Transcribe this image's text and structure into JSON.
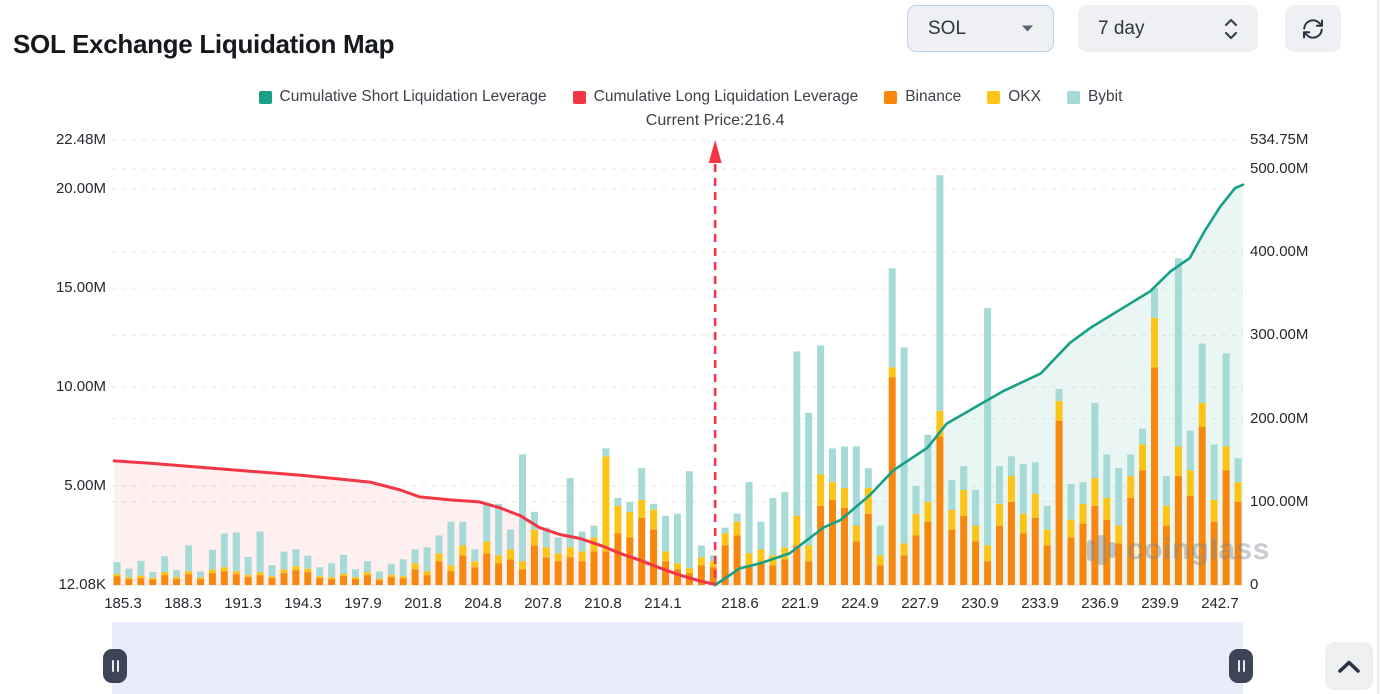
{
  "header": {
    "title": "SOL Exchange Liquidation Map",
    "symbol_select": {
      "value": "SOL",
      "icon": "caret-down-icon"
    },
    "period_select": {
      "value": "7 day",
      "icon": "stepper-up-down-icon"
    },
    "refresh_button": {
      "icon": "refresh-icon"
    }
  },
  "watermark": {
    "text": "coinglass",
    "icon": "coinglass-logo-icon"
  },
  "scrollbar": {
    "left_handle_icon": "pause-icon",
    "right_handle_icon": "pause-icon",
    "track_color": "#e9edfb"
  },
  "collapse_button": {
    "icon": "chevron-up-icon"
  },
  "chart_data": {
    "type": "bar",
    "subtype": "stacked bars + two cumulative lines",
    "title": "SOL Exchange Liquidation Map",
    "annotation": "Current Price:216.4",
    "current_price": 216.4,
    "current_price_fraction": 0.5333,
    "legend": [
      {
        "label": "Cumulative Short Liquidation Leverage",
        "color": "#18a087",
        "type": "line"
      },
      {
        "label": "Cumulative Long Liquidation Leverage",
        "color": "#f23645",
        "type": "line"
      },
      {
        "label": "Binance",
        "color": "#f8870e",
        "type": "bar"
      },
      {
        "label": "OKX",
        "color": "#fcc417",
        "type": "bar"
      },
      {
        "label": "Bybit",
        "color": "#a5dad6",
        "type": "bar"
      }
    ],
    "colors": {
      "binance": "#f8870e",
      "okx": "#fcc417",
      "bybit": "#a5dad6",
      "long": "#f23645",
      "short": "#18a087",
      "long_fill": "rgba(242,54,69,0.08)",
      "short_fill": "rgba(24,160,135,0.09)"
    },
    "left_axis": {
      "ticks": [
        "22.48M",
        "20.00M",
        "15.00M",
        "10.00M",
        "5.00M",
        "12.08K"
      ],
      "values_m": [
        22.48,
        20,
        15,
        10,
        5,
        0.01208
      ],
      "max_m": 22.48
    },
    "right_axis": {
      "ticks": [
        "534.75M",
        "500.00M",
        "400.00M",
        "300.00M",
        "200.00M",
        "100.00M",
        "0"
      ],
      "values_m": [
        534.75,
        500,
        400,
        300,
        200,
        100,
        0
      ],
      "max_m": 534.75
    },
    "x_axis": {
      "ticks": [
        "185.3",
        "188.3",
        "191.3",
        "194.3",
        "197.9",
        "201.8",
        "204.8",
        "207.8",
        "210.8",
        "214.1",
        "218.6",
        "221.9",
        "224.9",
        "227.9",
        "230.9",
        "233.9",
        "236.9",
        "239.9",
        "242.7"
      ]
    },
    "x_unit": "fraction of plot width",
    "long_line": [
      [
        0.002,
        6.27
      ],
      [
        0.034,
        6.15
      ],
      [
        0.078,
        5.95
      ],
      [
        0.122,
        5.75
      ],
      [
        0.166,
        5.55
      ],
      [
        0.202,
        5.35
      ],
      [
        0.228,
        5.2
      ],
      [
        0.255,
        4.8
      ],
      [
        0.272,
        4.45
      ],
      [
        0.299,
        4.3
      ],
      [
        0.325,
        4.2
      ],
      [
        0.343,
        3.9
      ],
      [
        0.361,
        3.5
      ],
      [
        0.378,
        2.9
      ],
      [
        0.396,
        2.55
      ],
      [
        0.414,
        2.35
      ],
      [
        0.432,
        2.0
      ],
      [
        0.449,
        1.6
      ],
      [
        0.467,
        1.25
      ],
      [
        0.485,
        0.85
      ],
      [
        0.502,
        0.5
      ],
      [
        0.52,
        0.2
      ],
      [
        0.5333,
        0.03
      ]
    ],
    "long_line_unit": "M USD (left axis)",
    "short_line": [
      [
        0.5333,
        0
      ],
      [
        0.555,
        20
      ],
      [
        0.573,
        26
      ],
      [
        0.599,
        38
      ],
      [
        0.629,
        69
      ],
      [
        0.644,
        78
      ],
      [
        0.67,
        108
      ],
      [
        0.691,
        138
      ],
      [
        0.721,
        165
      ],
      [
        0.738,
        194
      ],
      [
        0.761,
        212
      ],
      [
        0.788,
        233
      ],
      [
        0.821,
        254
      ],
      [
        0.847,
        291
      ],
      [
        0.865,
        309
      ],
      [
        0.9,
        338
      ],
      [
        0.918,
        353
      ],
      [
        0.936,
        377
      ],
      [
        0.953,
        393
      ],
      [
        0.966,
        425
      ],
      [
        0.98,
        455
      ],
      [
        0.993,
        477
      ],
      [
        1.0,
        481
      ]
    ],
    "short_line_unit": "M USD (right axis)",
    "bars_series_order": [
      "Binance",
      "OKX",
      "Bybit"
    ],
    "bars_unit": "M USD (left axis)",
    "bars": [
      [
        0.45,
        0.1,
        0.6
      ],
      [
        0.3,
        0.08,
        0.45
      ],
      [
        0.35,
        0.12,
        0.75
      ],
      [
        0.28,
        0.08,
        0.3
      ],
      [
        0.5,
        0.15,
        0.8
      ],
      [
        0.3,
        0.1,
        0.35
      ],
      [
        0.55,
        0.15,
        1.3
      ],
      [
        0.3,
        0.08,
        0.3
      ],
      [
        0.6,
        0.18,
        1.0
      ],
      [
        0.7,
        0.2,
        1.7
      ],
      [
        0.55,
        0.15,
        1.95
      ],
      [
        0.4,
        0.12,
        0.9
      ],
      [
        0.5,
        0.15,
        2.05
      ],
      [
        0.35,
        0.1,
        0.55
      ],
      [
        0.6,
        0.18,
        0.9
      ],
      [
        0.75,
        0.2,
        0.85
      ],
      [
        0.65,
        0.18,
        0.65
      ],
      [
        0.35,
        0.1,
        0.45
      ],
      [
        0.3,
        0.1,
        0.7
      ],
      [
        0.45,
        0.12,
        0.95
      ],
      [
        0.3,
        0.1,
        0.4
      ],
      [
        0.5,
        0.15,
        0.55
      ],
      [
        0.25,
        0.08,
        0.35
      ],
      [
        0.4,
        0.12,
        0.55
      ],
      [
        0.35,
        0.1,
        0.85
      ],
      [
        0.8,
        0.3,
        0.7
      ],
      [
        0.5,
        0.2,
        1.2
      ],
      [
        1.2,
        0.4,
        0.9
      ],
      [
        0.7,
        0.3,
        2.2
      ],
      [
        1.5,
        0.5,
        1.2
      ],
      [
        0.9,
        0.3,
        0.6
      ],
      [
        1.6,
        0.6,
        1.9
      ],
      [
        1.1,
        0.4,
        2.6
      ],
      [
        1.3,
        0.5,
        1.0
      ],
      [
        0.8,
        0.4,
        5.4
      ],
      [
        2.0,
        0.8,
        0.9
      ],
      [
        1.4,
        0.5,
        1.0
      ],
      [
        1.2,
        0.4,
        0.8
      ],
      [
        1.4,
        0.5,
        3.5
      ],
      [
        1.2,
        0.5,
        1.0
      ],
      [
        1.7,
        0.7,
        0.6
      ],
      [
        1.7,
        4.8,
        0.4
      ],
      [
        2.6,
        1.4,
        0.4
      ],
      [
        2.4,
        1.3,
        0.5
      ],
      [
        3.4,
        0.9,
        1.6
      ],
      [
        2.8,
        1.0,
        0.3
      ],
      [
        1.2,
        0.5,
        1.8
      ],
      [
        0.8,
        0.3,
        2.5
      ],
      [
        0.6,
        0.25,
        4.9
      ],
      [
        1.0,
        0.4,
        0.6
      ],
      [
        0.9,
        0.3,
        0.3
      ],
      [
        2.0,
        0.6,
        0.3
      ],
      [
        2.5,
        0.7,
        0.4
      ],
      [
        1.0,
        0.6,
        3.6
      ],
      [
        1.2,
        0.6,
        1.4
      ],
      [
        1.0,
        0.5,
        2.9
      ],
      [
        1.3,
        0.6,
        2.8
      ],
      [
        2.0,
        1.5,
        8.3
      ],
      [
        1.2,
        0.8,
        6.7
      ],
      [
        4.0,
        1.6,
        6.5
      ],
      [
        4.3,
        0.9,
        1.7
      ],
      [
        3.9,
        1.0,
        2.1
      ],
      [
        2.2,
        0.8,
        4.0
      ],
      [
        3.6,
        1.3,
        1.0
      ],
      [
        1.0,
        0.5,
        1.5
      ],
      [
        10.5,
        0.5,
        5.0
      ],
      [
        1.5,
        0.6,
        9.9
      ],
      [
        2.5,
        1.1,
        1.4
      ],
      [
        3.2,
        1.0,
        3.4
      ],
      [
        7.5,
        1.3,
        11.9
      ],
      [
        2.8,
        1.0,
        1.5
      ],
      [
        3.5,
        1.3,
        1.2
      ],
      [
        2.2,
        0.8,
        1.8
      ],
      [
        1.2,
        0.8,
        12.0
      ],
      [
        3.0,
        1.1,
        1.9
      ],
      [
        4.2,
        1.3,
        1.0
      ],
      [
        2.6,
        1.0,
        2.5
      ],
      [
        3.4,
        1.2,
        1.6
      ],
      [
        2.0,
        0.8,
        1.2
      ],
      [
        8.3,
        1.0,
        0.6
      ],
      [
        2.4,
        0.9,
        1.8
      ],
      [
        3.1,
        1.0,
        1.1
      ],
      [
        4.0,
        1.4,
        3.8
      ],
      [
        3.3,
        1.1,
        2.2
      ],
      [
        2.1,
        0.9,
        2.9
      ],
      [
        4.4,
        1.1,
        1.1
      ],
      [
        5.8,
        1.3,
        0.8
      ],
      [
        11.0,
        2.5,
        1.5
      ],
      [
        3.0,
        1.0,
        1.5
      ],
      [
        5.5,
        1.5,
        9.5
      ],
      [
        4.5,
        1.3,
        2.0
      ],
      [
        8.0,
        1.2,
        3.0
      ],
      [
        3.2,
        1.1,
        2.8
      ],
      [
        5.8,
        1.2,
        4.7
      ],
      [
        4.2,
        1.0,
        1.2
      ]
    ],
    "layout": {
      "grid": "dashed horizontal",
      "legend_position": "top center"
    }
  }
}
